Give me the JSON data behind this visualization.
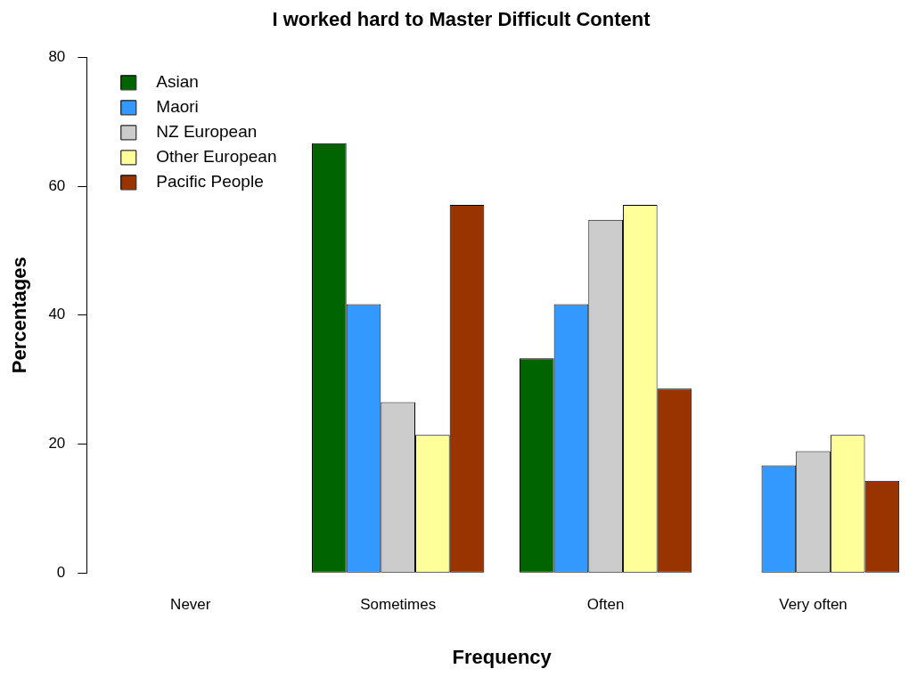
{
  "chart_data": {
    "type": "bar",
    "title": "I worked hard to Master Difficult Content",
    "xlabel": "Frequency",
    "ylabel": "Percentages",
    "categories": [
      "Never",
      "Sometimes",
      "Often",
      "Very often"
    ],
    "series": [
      {
        "name": "Asian",
        "color": "#006400",
        "values": [
          0,
          66.7,
          33.3,
          0
        ]
      },
      {
        "name": "Maori",
        "color": "#3399ff",
        "values": [
          0,
          41.7,
          41.7,
          16.7
        ]
      },
      {
        "name": "NZ European",
        "color": "#cccccc",
        "values": [
          0,
          26.5,
          54.8,
          18.9
        ]
      },
      {
        "name": "Other European",
        "color": "#ffff99",
        "values": [
          0,
          21.4,
          57.1,
          21.4
        ]
      },
      {
        "name": "Pacific People",
        "color": "#993300",
        "values": [
          0,
          57.1,
          28.6,
          14.3
        ]
      }
    ],
    "ylim": [
      0,
      80
    ],
    "yticks": [
      0,
      20,
      40,
      60,
      80
    ],
    "grid": false,
    "legend": "top left"
  }
}
